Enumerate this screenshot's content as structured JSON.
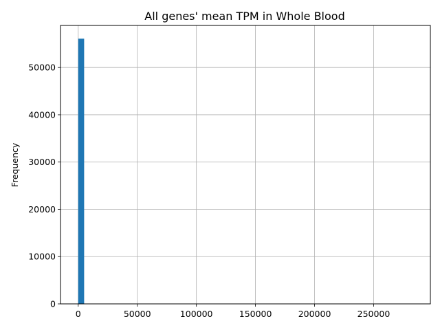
{
  "chart_data": {
    "type": "bar",
    "title": "All genes' mean TPM in Whole Blood",
    "xlabel": "",
    "ylabel": "Frequency",
    "xlim": [
      -15000,
      298000
    ],
    "ylim": [
      0,
      58900
    ],
    "x_ticks": [
      0,
      50000,
      100000,
      150000,
      200000,
      250000
    ],
    "y_ticks": [
      0,
      10000,
      20000,
      30000,
      40000,
      50000
    ],
    "grid": true,
    "bar_color": "#1f77b4",
    "bins": [
      {
        "x0": 0,
        "x1": 5000,
        "count": 56100
      }
    ]
  }
}
